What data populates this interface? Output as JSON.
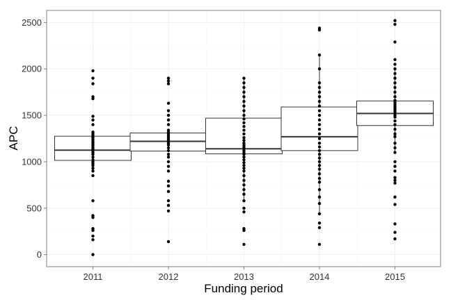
{
  "chart_data": {
    "type": "box",
    "xlabel": "Funding period",
    "ylabel": "APC",
    "categories": [
      "2011",
      "2012",
      "2013",
      "2014",
      "2015"
    ],
    "yticks": [
      0,
      500,
      1000,
      1500,
      2000,
      2500
    ],
    "ylim": [
      -130,
      2630
    ],
    "grid": true,
    "boxes": [
      {
        "category": "2011",
        "q1": 1015,
        "median": 1125,
        "q3": 1275,
        "whisker_low": 1015,
        "whisker_high": 1275
      },
      {
        "category": "2012",
        "q1": 1115,
        "median": 1220,
        "q3": 1310,
        "whisker_low": 1115,
        "whisker_high": 1310
      },
      {
        "category": "2013",
        "q1": 1085,
        "median": 1140,
        "q3": 1470,
        "whisker_low": 570,
        "whisker_high": 1900
      },
      {
        "category": "2014",
        "q1": 1120,
        "median": 1270,
        "q3": 1590,
        "whisker_low": 440,
        "whisker_high": 2150
      },
      {
        "category": "2015",
        "q1": 1390,
        "median": 1520,
        "q3": 1655,
        "whisker_low": 1100,
        "whisker_high": 2020
      }
    ],
    "points": [
      {
        "category": "2011",
        "values": [
          0,
          160,
          200,
          260,
          280,
          400,
          420,
          580,
          850,
          900,
          930,
          960,
          980,
          1000,
          1020,
          1050,
          1080,
          1100,
          1120,
          1140,
          1160,
          1180,
          1200,
          1220,
          1240,
          1260,
          1280,
          1300,
          1320,
          1400,
          1450,
          1490,
          1680,
          1700,
          1840,
          1900,
          1980
        ]
      },
      {
        "category": "2012",
        "values": [
          140,
          470,
          530,
          580,
          680,
          740,
          790,
          900,
          950,
          1000,
          1050,
          1080,
          1120,
          1150,
          1180,
          1200,
          1220,
          1240,
          1260,
          1280,
          1300,
          1320,
          1340,
          1400,
          1450,
          1500,
          1550,
          1630,
          1840,
          1870,
          1900
        ]
      },
      {
        "category": "2013",
        "values": [
          110,
          260,
          280,
          460,
          500,
          580,
          650,
          700,
          750,
          800,
          850,
          900,
          930,
          960,
          990,
          1020,
          1050,
          1080,
          1100,
          1120,
          1140,
          1160,
          1180,
          1200,
          1230,
          1260,
          1300,
          1340,
          1380,
          1420,
          1460,
          1500,
          1550,
          1600,
          1650,
          1700,
          1750,
          1800,
          1850,
          1900
        ]
      },
      {
        "category": "2014",
        "values": [
          110,
          290,
          340,
          440,
          550,
          620,
          700,
          780,
          820,
          870,
          920,
          960,
          1000,
          1040,
          1080,
          1120,
          1160,
          1200,
          1250,
          1300,
          1350,
          1400,
          1450,
          1500,
          1550,
          1600,
          1650,
          1700,
          1750,
          1800,
          1850,
          2000,
          2150,
          2420,
          2440
        ]
      },
      {
        "category": "2015",
        "values": [
          170,
          240,
          330,
          540,
          620,
          770,
          800,
          830,
          900,
          950,
          1000,
          1100,
          1150,
          1200,
          1270,
          1300,
          1350,
          1400,
          1440,
          1480,
          1500,
          1520,
          1540,
          1560,
          1580,
          1600,
          1620,
          1640,
          1660,
          1700,
          1750,
          1800,
          1850,
          1900,
          1950,
          2000,
          2050,
          2100,
          2290,
          2480,
          2520
        ]
      }
    ]
  }
}
